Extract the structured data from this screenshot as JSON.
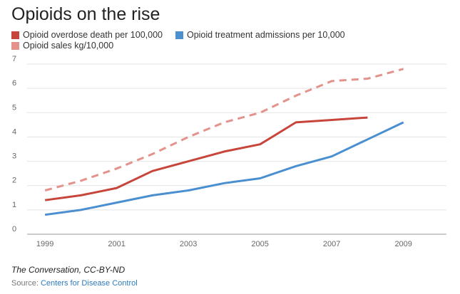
{
  "chart_data": {
    "type": "line",
    "title": "Opioids on the rise",
    "xlabel": "",
    "ylabel": "",
    "xlim": [
      1998.5,
      2010.2
    ],
    "ylim": [
      0,
      7
    ],
    "yticks": [
      0,
      1,
      2,
      3,
      4,
      5,
      6,
      7
    ],
    "xticks": [
      1999,
      2001,
      2003,
      2005,
      2007,
      2009
    ],
    "grid": true,
    "legend_position": "top-left",
    "series": [
      {
        "name": "Opioid overdose death per 100,000",
        "color": "#c8453b",
        "dashed": false,
        "x": [
          1999,
          2000,
          2001,
          2002,
          2003,
          2004,
          2005,
          2006,
          2007,
          2008
        ],
        "values": [
          1.4,
          1.6,
          1.9,
          2.6,
          3.0,
          3.4,
          3.7,
          4.6,
          4.7,
          4.8
        ]
      },
      {
        "name": "Opioid treatment admissions per 10,000",
        "color": "#4a8fd0",
        "dashed": false,
        "x": [
          1999,
          2000,
          2001,
          2002,
          2003,
          2004,
          2005,
          2006,
          2007,
          2008,
          2009
        ],
        "values": [
          0.8,
          1.0,
          1.3,
          1.6,
          1.8,
          2.1,
          2.3,
          2.8,
          3.2,
          3.9,
          4.6
        ]
      },
      {
        "name": "Opioid sales kg/10,000",
        "color": "#e3938b",
        "dashed": true,
        "x": [
          1999,
          2000,
          2001,
          2002,
          2003,
          2004,
          2005,
          2006,
          2007,
          2008,
          2009
        ],
        "values": [
          1.8,
          2.2,
          2.7,
          3.3,
          4.0,
          4.6,
          5.0,
          5.7,
          6.3,
          6.4,
          6.8
        ]
      }
    ]
  },
  "footer": {
    "credit": "The Conversation, CC-BY-ND",
    "source_prefix": "Source: ",
    "source_link": "Centers for Disease Control"
  }
}
